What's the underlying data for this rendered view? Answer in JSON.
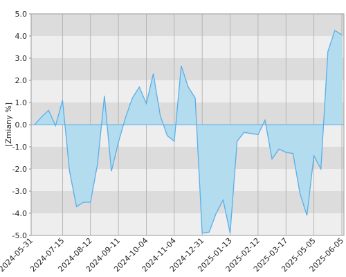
{
  "chart_data": {
    "type": "area",
    "y_label": "[Zmiany %]",
    "categories": [
      "2024-05-31",
      null,
      null,
      null,
      "2024-07-15",
      null,
      null,
      null,
      "2024-08-12",
      null,
      null,
      null,
      "2024-09-11",
      null,
      null,
      null,
      "2024-10-04",
      null,
      null,
      null,
      "2024-11-04",
      null,
      null,
      null,
      "2024-12-31",
      null,
      null,
      null,
      "2025-01-13",
      null,
      null,
      null,
      "2025-02-12",
      null,
      null,
      null,
      "2025-03-17",
      null,
      null,
      null,
      "2025-05-05",
      null,
      null,
      null,
      "2025-06-05"
    ],
    "values": [
      0.0,
      0.35,
      0.65,
      -0.05,
      1.1,
      -2.1,
      -3.7,
      -3.5,
      -3.5,
      -1.8,
      1.3,
      -2.1,
      -0.8,
      0.3,
      1.2,
      1.7,
      0.95,
      2.3,
      0.4,
      -0.5,
      -0.75,
      2.65,
      1.7,
      1.2,
      -4.9,
      -4.85,
      -4.0,
      -3.4,
      -4.9,
      -0.75,
      -0.35,
      -0.4,
      -0.45,
      0.2,
      -1.55,
      -1.1,
      -1.25,
      -1.3,
      -3.1,
      -4.1,
      -1.4,
      -2.0,
      3.3,
      4.25,
      4.05
    ],
    "color": "#5aaee8",
    "fill": "#b3dcef",
    "ylim": [
      -5,
      5
    ],
    "yticks": [
      {
        "value": -5,
        "label": "-5.0"
      },
      {
        "value": -4,
        "label": "-4.0"
      },
      {
        "value": -3,
        "label": "-3.0"
      },
      {
        "value": -2,
        "label": "-2.0"
      },
      {
        "value": -1,
        "label": "-1.0"
      },
      {
        "value": 0,
        "label": "0.0"
      },
      {
        "value": 1,
        "label": "1.0"
      },
      {
        "value": 2,
        "label": "2.0"
      },
      {
        "value": 3,
        "label": "3.0"
      },
      {
        "value": 4,
        "label": "4.0"
      },
      {
        "value": 5,
        "label": "5.0"
      }
    ],
    "grid": true
  }
}
